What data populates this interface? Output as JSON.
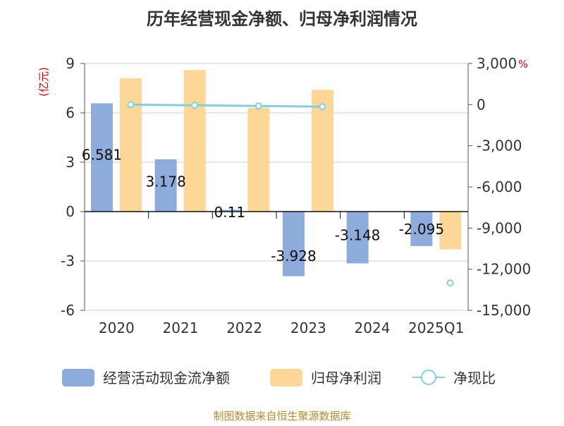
{
  "chart_data": {
    "type": "bar",
    "title": "历年经营现金净额、归母净利润情况",
    "categories": [
      "2020",
      "2021",
      "2022",
      "2023",
      "2024",
      "2025Q1"
    ],
    "left_axis": {
      "unit": "(亿元)",
      "ylim": [
        -6,
        9
      ],
      "ticks": [
        "9",
        "6",
        "3",
        "0",
        "-3",
        "-6"
      ]
    },
    "right_axis": {
      "unit": "%",
      "ylim": [
        -15000,
        3000
      ],
      "ticks": [
        "3,000",
        "0",
        "-3,000",
        "-6,000",
        "-9,000",
        "-12,000",
        "-15,000"
      ]
    },
    "series": [
      {
        "name": "经营活动现金流净额",
        "kind": "bar",
        "axis": "left",
        "color": "#8eacdb",
        "values": [
          6.581,
          3.178,
          0.11,
          -3.928,
          -3.148,
          -2.095
        ],
        "labels": [
          "6.581",
          "3.178",
          "0.11",
          "-3.928",
          "-3.148",
          "-2.095"
        ]
      },
      {
        "name": "归母净利润",
        "kind": "bar",
        "axis": "left",
        "color": "#fdd797",
        "values": [
          8.1,
          8.6,
          6.3,
          7.4,
          null,
          -2.3
        ],
        "labels": []
      },
      {
        "name": "净现比",
        "kind": "line",
        "axis": "right",
        "color": "#86cfd8",
        "values": [
          0,
          -50,
          -100,
          -150,
          null,
          -13000
        ]
      }
    ],
    "grid": true,
    "legend_position": "bottom",
    "source": "制图数据来自恒生聚源数据库"
  }
}
